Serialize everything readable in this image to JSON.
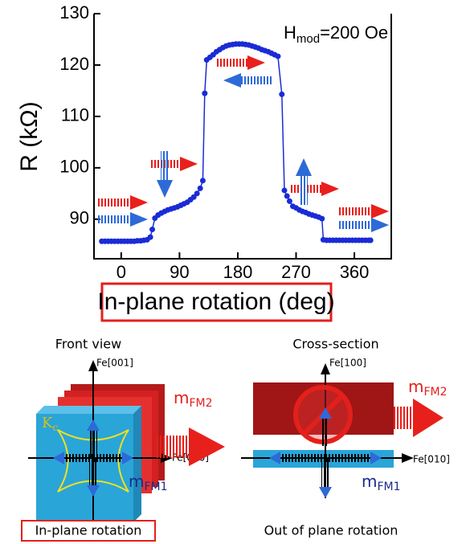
{
  "chart_data": {
    "type": "line",
    "annotation": {
      "base": "H",
      "sub": "mod",
      "rest": "=200 Oe"
    },
    "ylabel": "R (kΩ)",
    "xlabel": "In-plane rotation (deg)",
    "xlim": [
      -42,
      417
    ],
    "xticks": [
      0,
      90,
      180,
      270,
      360
    ],
    "ylim": [
      82.3,
      130
    ],
    "yticks": [
      90,
      100,
      110,
      120,
      130
    ],
    "series": [
      {
        "color": "#1a2bd6",
        "x": [
          -30,
          -25,
          -20,
          -15,
          -10,
          -5,
          0,
          5,
          10,
          15,
          20,
          25,
          30,
          35,
          40,
          45,
          48,
          52,
          57,
          62,
          67,
          72,
          77,
          82,
          87,
          92,
          97,
          102,
          107,
          112,
          117,
          122,
          126,
          129,
          132,
          137,
          142,
          147,
          152,
          157,
          162,
          167,
          172,
          177,
          182,
          187,
          192,
          197,
          202,
          207,
          212,
          217,
          222,
          227,
          232,
          237,
          242,
          248,
          252,
          256,
          260,
          265,
          270,
          275,
          280,
          285,
          290,
          295,
          300,
          305,
          310,
          312,
          317,
          322,
          327,
          332,
          337,
          342,
          347,
          352,
          357,
          362,
          367,
          372,
          377,
          382,
          385
        ],
        "values": [
          85.7,
          85.7,
          85.7,
          85.7,
          85.7,
          85.7,
          85.7,
          85.7,
          85.7,
          85.7,
          85.7,
          85.8,
          85.8,
          85.9,
          86.0,
          86.5,
          88.0,
          90.2,
          90.8,
          91.2,
          91.5,
          91.8,
          92.0,
          92.2,
          92.4,
          92.7,
          93.0,
          93.3,
          93.8,
          94.3,
          95.0,
          96.0,
          97.5,
          114.5,
          121.0,
          121.5,
          122.0,
          122.6,
          123.0,
          123.4,
          123.7,
          123.9,
          124.0,
          124.1,
          124.1,
          124.1,
          124.0,
          123.9,
          123.7,
          123.5,
          123.3,
          123.0,
          122.8,
          122.6,
          122.3,
          122.0,
          121.7,
          114.3,
          95.6,
          94.5,
          93.5,
          92.5,
          92.2,
          91.8,
          91.5,
          91.3,
          91.0,
          90.8,
          90.6,
          90.4,
          90.1,
          86.0,
          85.9,
          85.9,
          85.9,
          85.9,
          85.9,
          85.9,
          85.9,
          85.9,
          85.9,
          85.9,
          85.9,
          85.9,
          85.9,
          85.9,
          85.9
        ]
      }
    ]
  },
  "diagrams": {
    "left": {
      "title": "Front view",
      "axis_up": "Fe[001]",
      "axis_right": "Fe[010]",
      "m2": {
        "base": "m",
        "sub": "FM2"
      },
      "k": {
        "base": "K",
        "sub": "c"
      },
      "m1": {
        "base": "m",
        "sub": "FM1"
      },
      "caption": "In-plane rotation"
    },
    "right": {
      "title": "Cross-section",
      "axis_up": "Fe[100]",
      "axis_right": "Fe[010]",
      "m2": {
        "base": "m",
        "sub": "FM2"
      },
      "m1": {
        "base": "m",
        "sub": "FM1"
      },
      "caption": "Out of plane rotation"
    }
  }
}
